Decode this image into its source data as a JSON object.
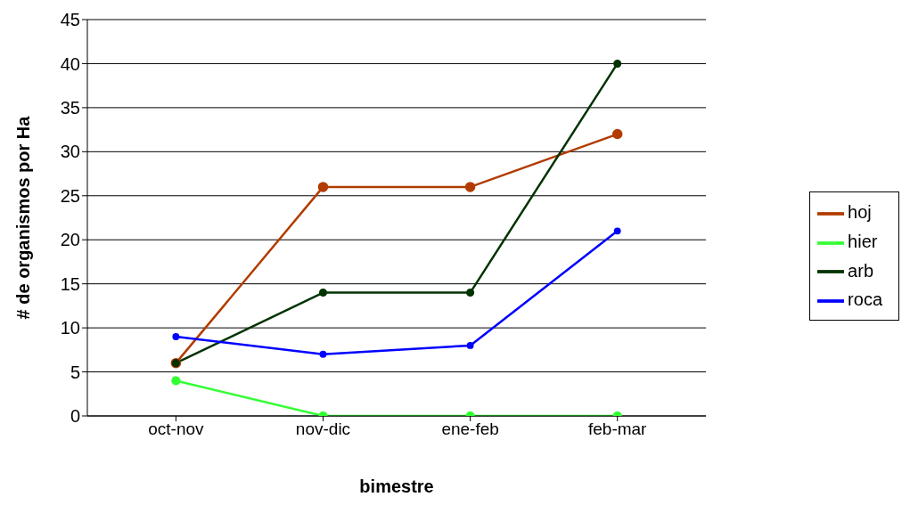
{
  "chart_data": {
    "type": "line",
    "xlabel": "bimestre",
    "ylabel": "# de organismos por Ha",
    "categories": [
      "oct-nov",
      "nov-dic",
      "ene-feb",
      "feb-mar"
    ],
    "series": [
      {
        "name": "hoj",
        "color": "#b23c00",
        "values": [
          6,
          26,
          26,
          32
        ]
      },
      {
        "name": "hier",
        "color": "#33ff33",
        "values": [
          4,
          0,
          0,
          0
        ]
      },
      {
        "name": "arb",
        "color": "#003300",
        "values": [
          6,
          14,
          14,
          40
        ]
      },
      {
        "name": "roca",
        "color": "#0000ff",
        "values": [
          9,
          7,
          8,
          21
        ]
      }
    ],
    "ylim": [
      0,
      45
    ],
    "yticks": [
      0,
      5,
      10,
      15,
      20,
      25,
      30,
      35,
      40,
      45
    ],
    "grid": "y",
    "legend": "right",
    "marker": "circle",
    "line_style": "solid"
  }
}
